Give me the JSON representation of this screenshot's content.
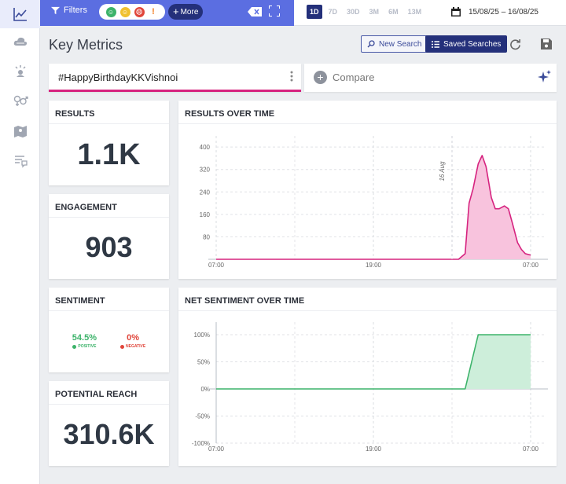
{
  "sidebar": {
    "items": [
      {
        "icon": "line-chart-icon",
        "active": true
      },
      {
        "icon": "cloud-icon",
        "active": false
      },
      {
        "icon": "influencer-icon",
        "active": false
      },
      {
        "icon": "gender-icon",
        "active": false
      },
      {
        "icon": "map-icon",
        "active": false
      },
      {
        "icon": "comments-icon",
        "active": false
      }
    ]
  },
  "topbar": {
    "filters_label": "Filters",
    "more_label": "More",
    "range_options": [
      "1D",
      "7D",
      "30D",
      "3M",
      "6M",
      "13M"
    ],
    "range_selected": "1D",
    "date_range": "15/08/25 – 16/08/25"
  },
  "header": {
    "title": "Key Metrics",
    "new_search_label": "New Search",
    "saved_searches_label": "Saved Searches"
  },
  "search": {
    "query": "#HappyBirthdayKKVishnoi",
    "compare_label": "Compare"
  },
  "metrics": {
    "results": {
      "title": "RESULTS",
      "value": "1.1K"
    },
    "engagement": {
      "title": "ENGAGEMENT",
      "value": "903"
    },
    "sentiment": {
      "title": "SENTIMENT",
      "positive_value": "54.5%",
      "positive_label": "POSITIVE",
      "negative_value": "0%",
      "negative_label": "NEGATIVE"
    },
    "reach": {
      "title": "POTENTIAL REACH",
      "value": "310.6K"
    }
  },
  "colors": {
    "accent": "#24307a",
    "topbar": "#5b6ee1",
    "results_line": "#d6237f",
    "results_fill": "#f8c3dd",
    "sentiment_line": "#3cb36a",
    "sentiment_fill": "#cdeeda",
    "positive": "#3cb36a",
    "negative": "#e0453a"
  },
  "chart_data": [
    {
      "type": "area",
      "title": "RESULTS OVER TIME",
      "x_ticks": [
        "07:00",
        "19:00",
        "07:00"
      ],
      "y_ticks": [
        80,
        160,
        240,
        320,
        400
      ],
      "ylim": [
        0,
        420
      ],
      "annotation": "16 Aug",
      "grid": true,
      "x": [
        0,
        2,
        4,
        6,
        8,
        10,
        12,
        14,
        16,
        18,
        18.5,
        19,
        19.3,
        19.6,
        20,
        20.3,
        20.6,
        21,
        21.3,
        21.6,
        22,
        22.3,
        22.6,
        23,
        23.3,
        23.6,
        24
      ],
      "values": [
        0,
        0,
        0,
        0,
        0,
        0,
        0,
        0,
        0,
        0,
        0,
        20,
        200,
        250,
        340,
        370,
        330,
        220,
        180,
        180,
        190,
        180,
        130,
        60,
        35,
        20,
        15
      ]
    },
    {
      "type": "area",
      "title": "NET SENTIMENT OVER TIME",
      "x_ticks": [
        "07:00",
        "19:00",
        "07:00"
      ],
      "y_ticks": [
        "100%",
        "50%",
        "0%",
        "-50%",
        "-100%"
      ],
      "ylim": [
        -100,
        100
      ],
      "grid": true,
      "x": [
        0,
        18,
        18.1,
        19,
        20,
        24
      ],
      "values": [
        0,
        0,
        0,
        0,
        100,
        100
      ]
    }
  ]
}
